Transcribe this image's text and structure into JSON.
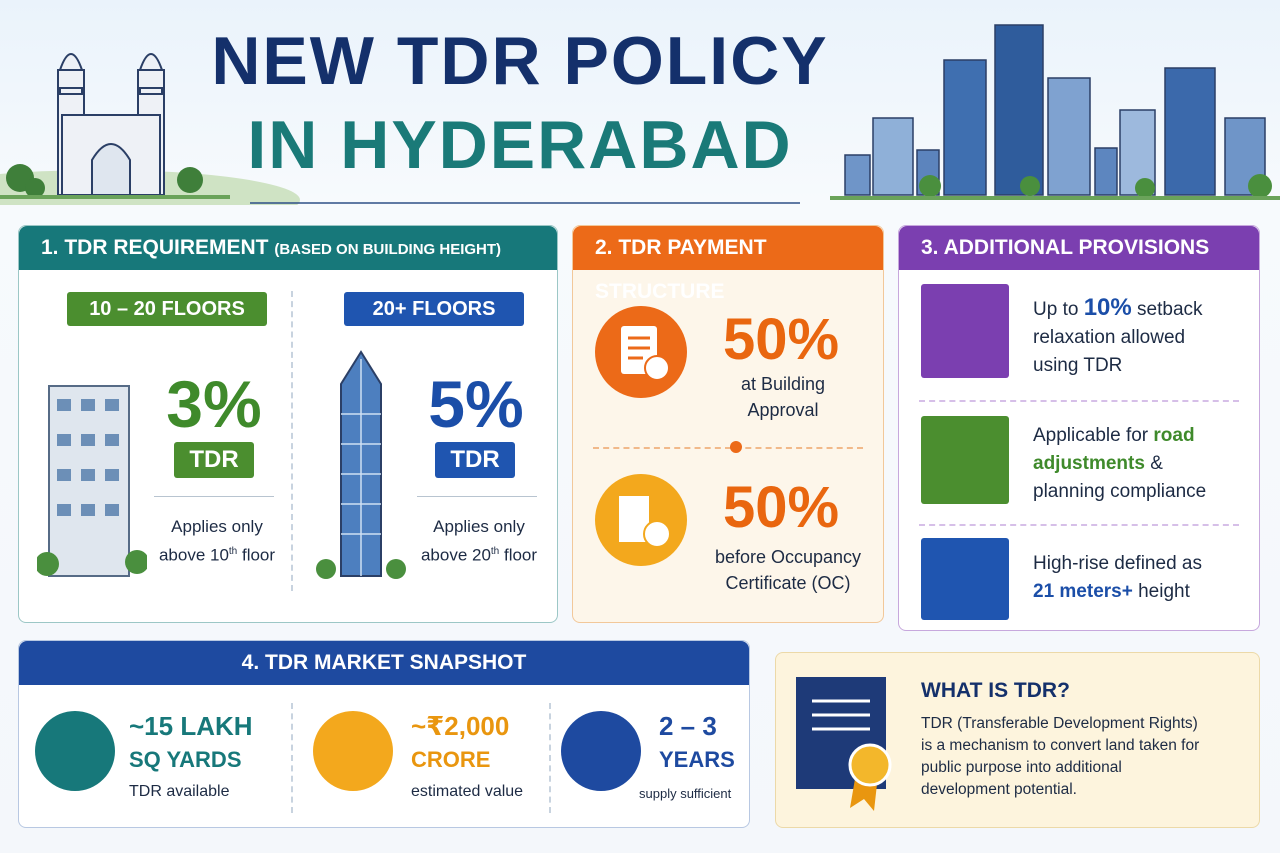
{
  "header": {
    "title_line1": "NEW TDR POLICY",
    "title_line2": "IN HYDERABAD"
  },
  "requirement": {
    "heading": "1. TDR REQUIREMENT",
    "subheading": "(BASED ON BUILDING HEIGHT)",
    "columns": [
      {
        "range": "10 – 20 FLOORS",
        "percent": "3%",
        "unit": "TDR",
        "note_line1": "Applies only",
        "note_pre": "above 10",
        "note_sup": "th",
        "note_post": " floor"
      },
      {
        "range": "20+ FLOORS",
        "percent": "5%",
        "unit": "TDR",
        "note_line1": "Applies only",
        "note_pre": "above 20",
        "note_sup": "th",
        "note_post": " floor"
      }
    ]
  },
  "payment": {
    "heading": "2. TDR PAYMENT STRUCTURE",
    "items": [
      {
        "percent": "50%",
        "label_line1": "at Building",
        "label_line2": "Approval"
      },
      {
        "percent": "50%",
        "label_line1": "before Occupancy",
        "label_line2": "Certificate (OC)"
      }
    ]
  },
  "provisions": {
    "heading": "3. ADDITIONAL PROVISIONS",
    "items": [
      {
        "parts": [
          "Up to ",
          "10%",
          " setback",
          "relaxation allowed",
          "using TDR"
        ]
      },
      {
        "parts": [
          "Applicable for ",
          "road",
          "adjustments",
          " &",
          "planning compliance"
        ]
      },
      {
        "parts": [
          "High-rise defined as",
          "21 meters+",
          "  height"
        ]
      }
    ]
  },
  "snapshot": {
    "heading": "4. TDR MARKET SNAPSHOT",
    "items": [
      {
        "line1": "~15 LAKH",
        "line2": "SQ YARDS",
        "line3": "TDR available"
      },
      {
        "line1": "~₹2,000",
        "line2": "CRORE",
        "line3": "estimated value"
      },
      {
        "line1": "2 – 3",
        "line2": "YEARS",
        "line3": "supply sufficient"
      }
    ]
  },
  "what_is": {
    "heading": "WHAT IS TDR?",
    "lines": [
      "TDR (Transferable Development Rights)",
      "is a mechanism to convert land taken for",
      "public purpose into additional",
      "development potential."
    ]
  }
}
